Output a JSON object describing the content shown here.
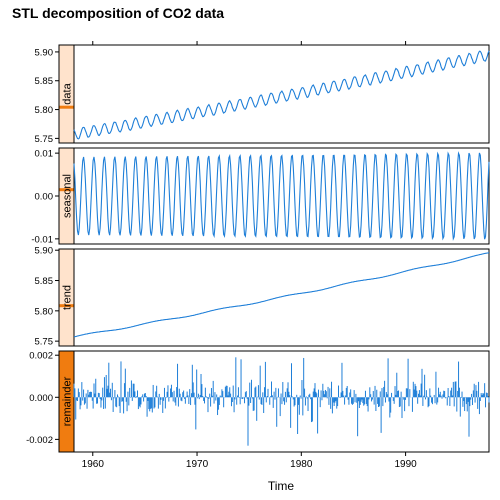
{
  "chart_data": {
    "type": "line",
    "title": "STL decomposition of CO2 data",
    "xlabel": "Time",
    "xlim": [
      1958.2,
      1998.0
    ],
    "x_ticks": [
      1960,
      1970,
      1980,
      1990
    ],
    "x_tick_labels": [
      "1960",
      "1970",
      "1980",
      "1990"
    ],
    "line_color": "#1f7fd8",
    "strip_color_light": "#ffe3cc",
    "strip_color_marker": "#f07c10",
    "panels": [
      {
        "name": "data",
        "ylim": [
          5.742,
          5.912
        ],
        "y_ticks": [
          5.75,
          5.8,
          5.85,
          5.9
        ],
        "y_tick_labels": [
          "5.75",
          "5.80",
          "5.85",
          "5.90"
        ],
        "strip_marker_fraction": 0.65,
        "series": {
          "start_year": 1958.2,
          "end_year": 1998.0,
          "trend_start": 5.757,
          "trend_end": 5.895,
          "seasonal_amplitude": 0.0095
        }
      },
      {
        "name": "seasonal",
        "ylim": [
          -0.0112,
          0.0112
        ],
        "y_ticks": [
          -0.01,
          0.0,
          0.01
        ],
        "y_tick_labels": [
          "-0.01",
          "0.00",
          "0.01"
        ],
        "strip_marker_fraction": 0.45,
        "series": {
          "amplitude_start": 0.0091,
          "amplitude_end": 0.0102
        }
      },
      {
        "name": "trend",
        "ylim": [
          5.742,
          5.902
        ],
        "y_ticks": [
          5.75,
          5.8,
          5.85,
          5.9
        ],
        "y_tick_labels": [
          "5.75",
          "5.80",
          "5.85",
          "5.90"
        ],
        "strip_marker_fraction": 0.6,
        "series": {
          "start": 5.757,
          "end": 5.895
        }
      },
      {
        "name": "remainder",
        "ylim": [
          -0.0026,
          0.0022
        ],
        "y_ticks": [
          -0.002,
          0.0,
          0.002
        ],
        "y_tick_labels": [
          "-0.002",
          "0.000",
          "0.002"
        ],
        "strip_marker_fraction": 1.0,
        "series": {
          "typical_spread": 0.0007,
          "max_spike": 0.0019,
          "min_spike": -0.0023
        }
      }
    ]
  }
}
